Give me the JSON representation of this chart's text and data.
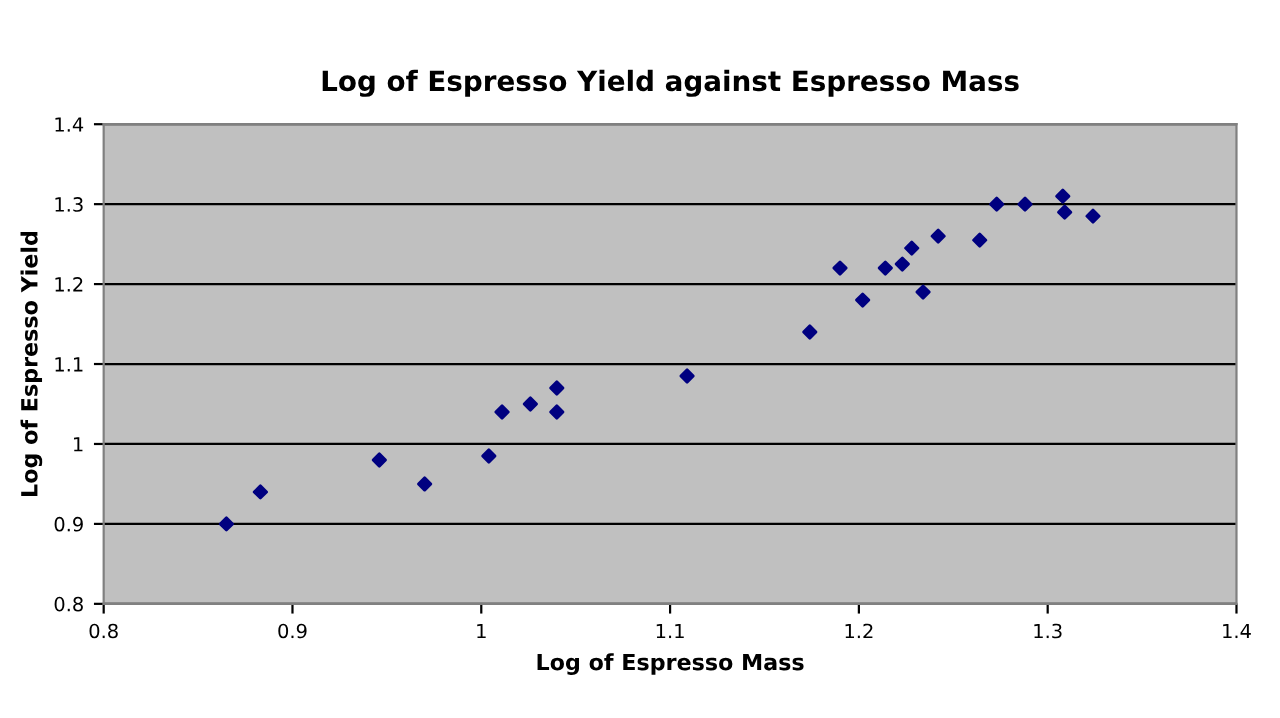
{
  "chart_data": {
    "type": "scatter",
    "title": "Log of Espresso Yield against Espresso Mass",
    "xlabel": "Log of Espresso Mass",
    "ylabel": "Log of Espresso Yield",
    "x": [
      0.865,
      0.883,
      0.946,
      0.97,
      1.004,
      1.011,
      1.026,
      1.04,
      1.04,
      1.109,
      1.174,
      1.19,
      1.202,
      1.214,
      1.223,
      1.228,
      1.234,
      1.242,
      1.264,
      1.273,
      1.288,
      1.308,
      1.309,
      1.324
    ],
    "series": [
      {
        "color": "#000080",
        "values": [
          0.9,
          0.94,
          0.98,
          0.95,
          0.985,
          1.04,
          1.05,
          1.07,
          1.04,
          1.085,
          1.14,
          1.22,
          1.18,
          1.22,
          1.225,
          1.245,
          1.19,
          1.26,
          1.255,
          1.3,
          1.3,
          1.31,
          1.29,
          1.285
        ]
      }
    ],
    "xlim": [
      0.8,
      1.4
    ],
    "xticks": [
      0.8,
      0.9,
      1,
      1.1,
      1.2,
      1.3,
      1.4
    ],
    "ylim": [
      0.8,
      1.4
    ],
    "yticks": [
      0.8,
      0.9,
      1,
      1.1,
      1.2,
      1.3,
      1.4
    ],
    "grid": "y",
    "marker": "diamond",
    "legend": false
  }
}
